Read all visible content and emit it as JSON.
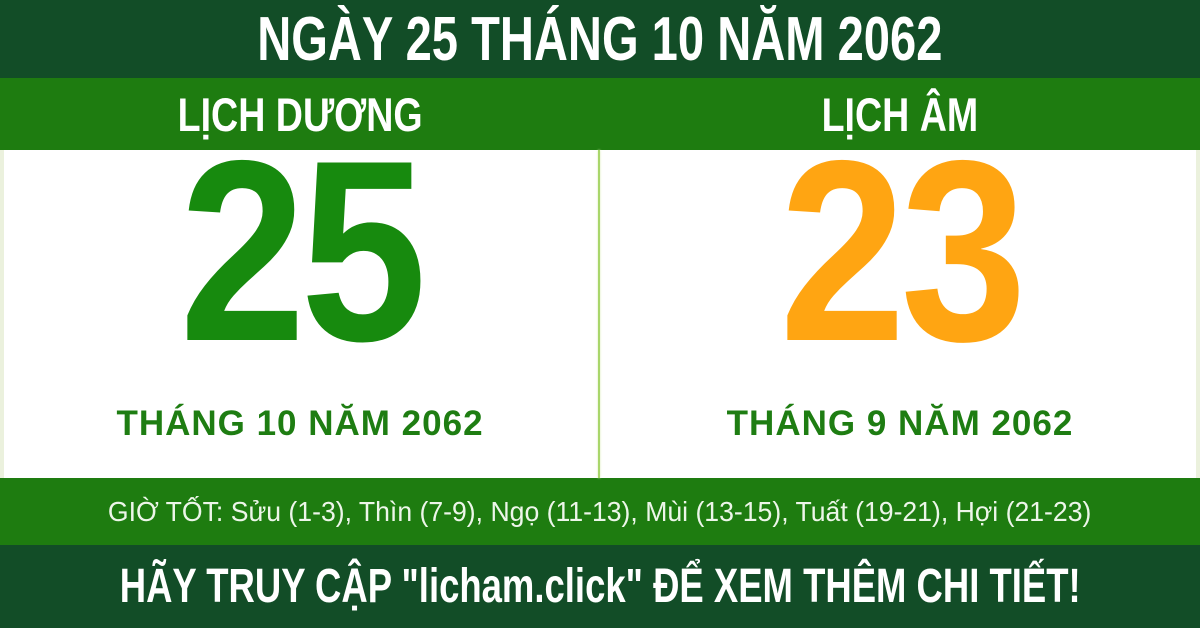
{
  "header": {
    "title": "NGÀY 25 THÁNG 10 NĂM 2062"
  },
  "solar": {
    "header": "LỊCH DƯƠNG",
    "day": "25",
    "month_year": "THÁNG 10 NĂM 2062"
  },
  "lunar": {
    "header": "LỊCH ÂM",
    "day": "23",
    "month_year": "THÁNG 9 NĂM 2062"
  },
  "good_hours": {
    "text": "GIỜ TỐT: Sửu (1-3), Thìn (7-9), Ngọ (11-13), Mùi (13-15), Tuất (19-21), Hợi (21-23)"
  },
  "footer": {
    "text": "HÃY TRUY CẬP \"licham.click\" ĐỂ XEM THÊM CHI TIẾT!"
  },
  "colors": {
    "dark_green_bar": "#124d27",
    "bright_green_band": "#1e7c10",
    "solar_day_green": "#178a0e",
    "lunar_day_orange": "#ffa512",
    "month_label_green": "#1e7d12",
    "divider_light_green": "#a9d66b",
    "hours_text_offwhite": "#edf6e9",
    "body_background": "#ffffff"
  }
}
